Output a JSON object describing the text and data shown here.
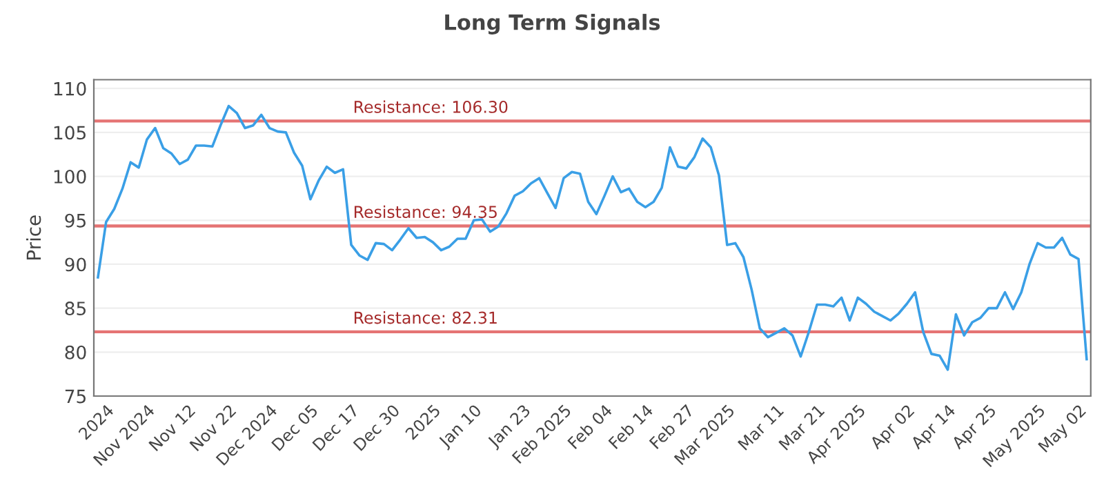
{
  "chart_data": {
    "type": "line",
    "title": "Long Term Signals",
    "ylabel": "Price",
    "categories": [
      null,
      "2024",
      null,
      null,
      null,
      null,
      "Nov 2024",
      null,
      null,
      null,
      null,
      "Nov 12",
      null,
      null,
      null,
      null,
      "Nov 22",
      null,
      null,
      null,
      null,
      "Dec 2024",
      null,
      null,
      null,
      null,
      "Dec 05",
      null,
      null,
      null,
      null,
      "Dec 17",
      null,
      null,
      null,
      null,
      "Dec 30",
      null,
      null,
      null,
      null,
      "2025",
      null,
      null,
      null,
      null,
      "Jan 10",
      null,
      null,
      null,
      null,
      null,
      "Jan 23",
      null,
      null,
      null,
      null,
      "Feb 2025",
      null,
      null,
      null,
      null,
      "Feb 04",
      null,
      null,
      null,
      null,
      "Feb 14",
      null,
      null,
      null,
      null,
      "Feb 27",
      null,
      null,
      null,
      null,
      "Mar 2025",
      null,
      null,
      null,
      null,
      null,
      "Mar 11",
      null,
      null,
      null,
      null,
      "Mar 21",
      null,
      null,
      null,
      null,
      "Apr 2025",
      null,
      null,
      null,
      null,
      null,
      "Apr 02",
      null,
      null,
      null,
      null,
      "Apr 14",
      null,
      null,
      null,
      null,
      "Apr 25",
      null,
      null,
      null,
      null,
      null,
      "May 2025",
      null,
      null,
      null,
      null,
      "May 02",
      null
    ],
    "series": [
      {
        "color": "#3a9fe6",
        "values": [
          88.5,
          94.8,
          96.3,
          98.6,
          101.6,
          101.0,
          104.2,
          105.5,
          103.2,
          102.6,
          101.4,
          101.9,
          103.5,
          103.5,
          103.4,
          105.8,
          108.0,
          107.2,
          105.5,
          105.8,
          107.0,
          105.5,
          105.1,
          105.0,
          102.7,
          101.2,
          97.4,
          99.5,
          101.1,
          100.4,
          100.8,
          92.2,
          91.0,
          90.5,
          92.4,
          92.3,
          91.6,
          92.8,
          94.1,
          93.0,
          93.1,
          92.5,
          91.6,
          92.0,
          92.9,
          92.9,
          95.0,
          95.1,
          93.7,
          94.3,
          95.8,
          97.8,
          98.3,
          99.2,
          99.8,
          98.1,
          96.4,
          99.8,
          100.5,
          100.3,
          97.1,
          95.7,
          97.8,
          100.0,
          98.2,
          98.6,
          97.1,
          96.5,
          97.1,
          98.7,
          103.3,
          101.1,
          100.9,
          102.2,
          104.3,
          103.3,
          100.1,
          92.2,
          92.4,
          90.8,
          87.1,
          82.7,
          81.7,
          82.2,
          82.7,
          81.9,
          79.5,
          82.3,
          85.4,
          85.4,
          85.2,
          86.2,
          83.6,
          86.2,
          85.5,
          84.6,
          84.1,
          83.6,
          84.4,
          85.5,
          86.8,
          82.3,
          79.8,
          79.6,
          78.0,
          84.3,
          81.9,
          83.4,
          83.9,
          85.0,
          85.0,
          86.8,
          84.9,
          86.8,
          90.0,
          92.4,
          91.9,
          91.9,
          93.0,
          91.1,
          90.6,
          79.2
        ]
      }
    ],
    "ylim": [
      75,
      111
    ],
    "yticks": [
      75,
      80,
      85,
      90,
      95,
      100,
      105,
      110
    ],
    "grid": "y",
    "marker": "none",
    "line_style": "solid",
    "ref_lines": [
      {
        "axis": "y",
        "value": 106.3,
        "label": "Resistance: 106.30",
        "color": "#e57373"
      },
      {
        "axis": "y",
        "value": 94.35,
        "label": "Resistance: 94.35",
        "color": "#e57373"
      },
      {
        "axis": "y",
        "value": 82.31,
        "label": "Resistance: 82.31",
        "color": "#e57373"
      }
    ]
  }
}
